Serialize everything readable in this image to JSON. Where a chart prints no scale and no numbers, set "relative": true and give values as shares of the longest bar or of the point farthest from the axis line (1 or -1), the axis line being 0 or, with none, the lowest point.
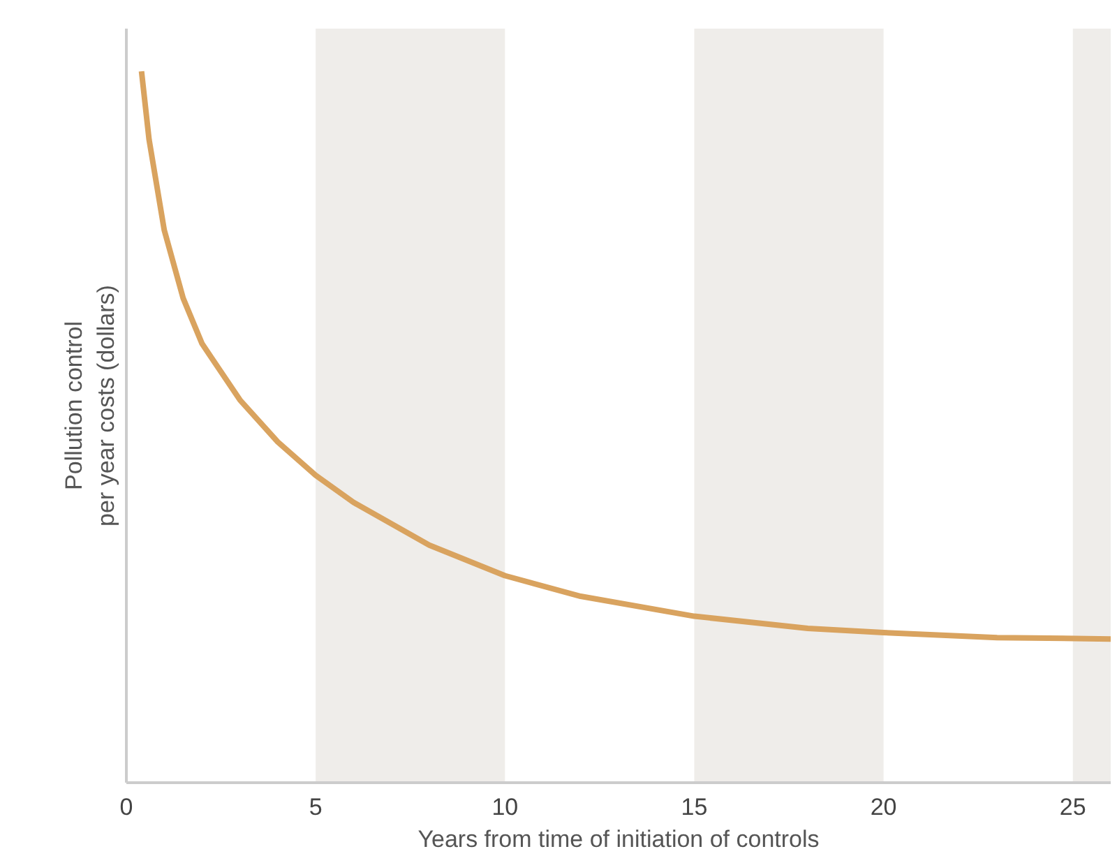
{
  "chart_data": {
    "type": "line",
    "relative": true,
    "xlabel": "Years from time of initiation of controls",
    "ylabel": "Pollution control\nper year costs (dollars)",
    "x": [
      0.4,
      0.6,
      1,
      1.5,
      2,
      3,
      4,
      5,
      6,
      8,
      10,
      12,
      15,
      18,
      20,
      23,
      26
    ],
    "series": [
      {
        "color": "#d9a35f",
        "values": [
          1.0,
          0.904,
          0.777,
          0.681,
          0.617,
          0.538,
          0.479,
          0.432,
          0.394,
          0.334,
          0.291,
          0.262,
          0.234,
          0.217,
          0.211,
          0.204,
          0.202
        ]
      }
    ],
    "xlim": [
      0,
      26
    ],
    "xticks": [
      0,
      5,
      10,
      15,
      20,
      25
    ],
    "grid": false,
    "bands": [
      {
        "axis": "x",
        "from": 5,
        "to": 10,
        "color": "#efedea"
      },
      {
        "axis": "x",
        "from": 15,
        "to": 20,
        "color": "#efedea"
      },
      {
        "axis": "x",
        "from": 25,
        "to": 26,
        "color": "#efedea"
      }
    ]
  }
}
